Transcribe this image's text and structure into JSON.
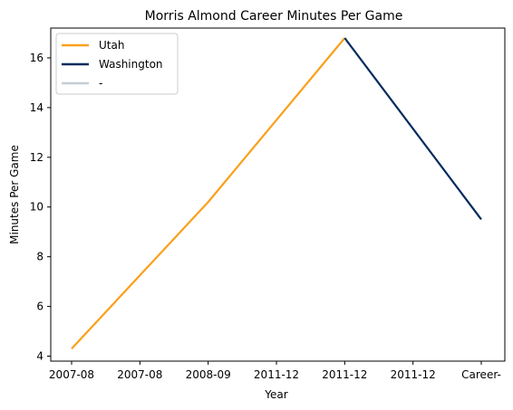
{
  "chart_data": {
    "type": "line",
    "title": "Morris Almond Career Minutes Per Game",
    "xlabel": "Year",
    "ylabel": "Minutes Per Game",
    "x_ticks": [
      "2007-08",
      "2007-08",
      "2008-09",
      "2011-12",
      "2011-12",
      "2011-12",
      "Career-"
    ],
    "ylim": [
      3.8,
      17.2
    ],
    "y_ticks": [
      4,
      6,
      8,
      10,
      12,
      14,
      16
    ],
    "grid": false,
    "legend_position": "top-left",
    "series": [
      {
        "name": "Utah",
        "color": "#F9A01B",
        "points": [
          [
            0,
            4.3
          ],
          [
            2,
            10.2
          ],
          [
            4,
            16.8
          ]
        ]
      },
      {
        "name": "Washington",
        "color": "#002B5C",
        "points": [
          [
            4,
            16.8
          ],
          [
            6,
            9.5
          ]
        ]
      },
      {
        "name": "-",
        "color": "#C4CED4",
        "points": []
      }
    ]
  }
}
